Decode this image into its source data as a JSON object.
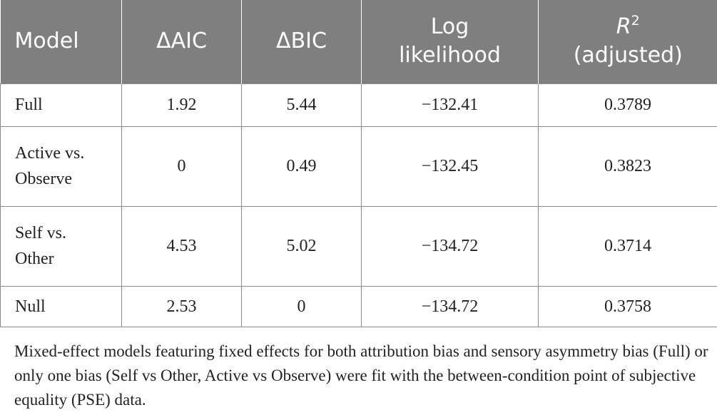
{
  "table": {
    "headers": {
      "model": "Model",
      "delta_aic": "ΔAIC",
      "delta_bic": "ΔBIC",
      "log_likelihood_line1": "Log",
      "log_likelihood_line2": "likelihood",
      "r2_symbol": "R",
      "r2_superscript": "2",
      "r2_line2": "(adjusted)"
    },
    "rows": [
      {
        "model_line1": "Full",
        "model_line2": "",
        "delta_aic": "1.92",
        "delta_bic": "5.44",
        "log_likelihood": "−132.41",
        "r2_adjusted": "0.3789"
      },
      {
        "model_line1": "Active vs.",
        "model_line2": "Observe",
        "delta_aic": "0",
        "delta_bic": "0.49",
        "log_likelihood": "−132.45",
        "r2_adjusted": "0.3823"
      },
      {
        "model_line1": "Self vs.",
        "model_line2": "Other",
        "delta_aic": "4.53",
        "delta_bic": "5.02",
        "log_likelihood": "−134.72",
        "r2_adjusted": "0.3714"
      },
      {
        "model_line1": "Null",
        "model_line2": "",
        "delta_aic": "2.53",
        "delta_bic": "0",
        "log_likelihood": "−134.72",
        "r2_adjusted": "0.3758"
      }
    ]
  },
  "footnote": "Mixed-effect models featuring fixed effects for both attribution bias and sensory asymmetry bias (Full) or only one bias (Self vs Other, Active vs Observe) were fit with the between-condition point of subjective equality (PSE) data.",
  "colors": {
    "header_background": "#7f7f7f",
    "header_text": "#ffffff",
    "grid_line": "#8a8a8a",
    "body_text": "#222222"
  }
}
